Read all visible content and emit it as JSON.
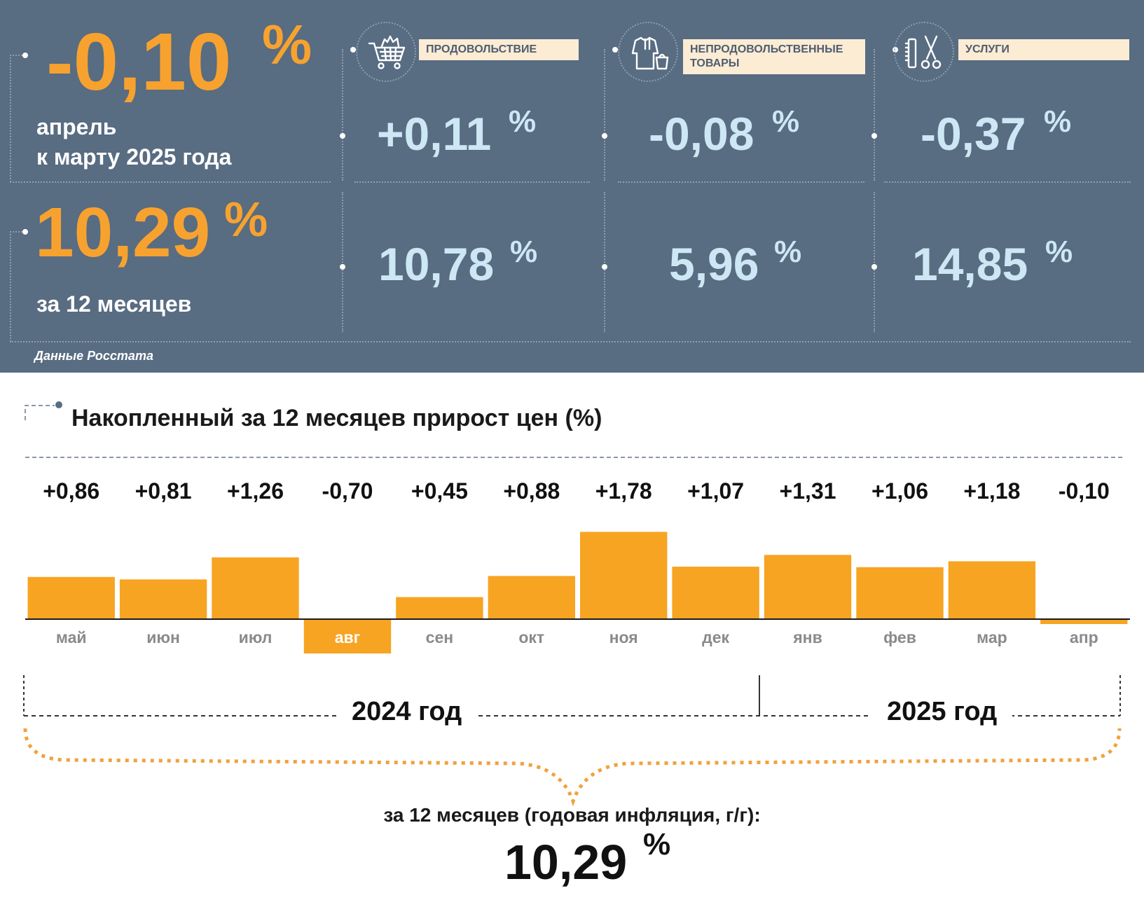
{
  "summary": {
    "month_value": "-0,10",
    "month_period_line1": "апрель",
    "month_period_line2": "к марту 2025 года",
    "year_value": "10,29",
    "year_period": "за 12 месяцев",
    "percent_sign": "%",
    "source": "Данные Росстата"
  },
  "categories": [
    {
      "icon": "shopping-cart-icon",
      "label": "ПРОДОВОЛЬСТВИЕ",
      "label_line2": "",
      "month_value": "+0,11",
      "year_value": "10,78"
    },
    {
      "icon": "clothing-icon",
      "label": "НЕПРОДОВОЛЬСТВЕННЫЕ",
      "label_line2": "ТОВАРЫ",
      "month_value": "-0,08",
      "year_value": "5,96"
    },
    {
      "icon": "scissors-comb-icon",
      "label": "УСЛУГИ",
      "label_line2": "",
      "month_value": "-0,37",
      "year_value": "14,85"
    }
  ],
  "chart_data": {
    "type": "bar",
    "title": "Накопленный за 12 месяцев прирост цен (%)",
    "categories": [
      "май",
      "июн",
      "июл",
      "авг",
      "сен",
      "окт",
      "ноя",
      "дек",
      "янв",
      "фев",
      "мар",
      "апр"
    ],
    "values": [
      0.86,
      0.81,
      1.26,
      -0.7,
      0.45,
      0.88,
      1.78,
      1.07,
      1.31,
      1.06,
      1.18,
      -0.1
    ],
    "value_labels": [
      "+0,86",
      "+0,81",
      "+1,26",
      "-0,70",
      "+0,45",
      "+0,88",
      "+1,78",
      "+1,07",
      "+1,31",
      "+1,06",
      "+1,18",
      "-0,10"
    ],
    "years": [
      "2024 год",
      "2025 год"
    ],
    "summary_label": "за 12 месяцев (годовая инфляция, г/г):",
    "summary_value": "10,29",
    "bar_color": "#f7a422",
    "grid": false
  }
}
